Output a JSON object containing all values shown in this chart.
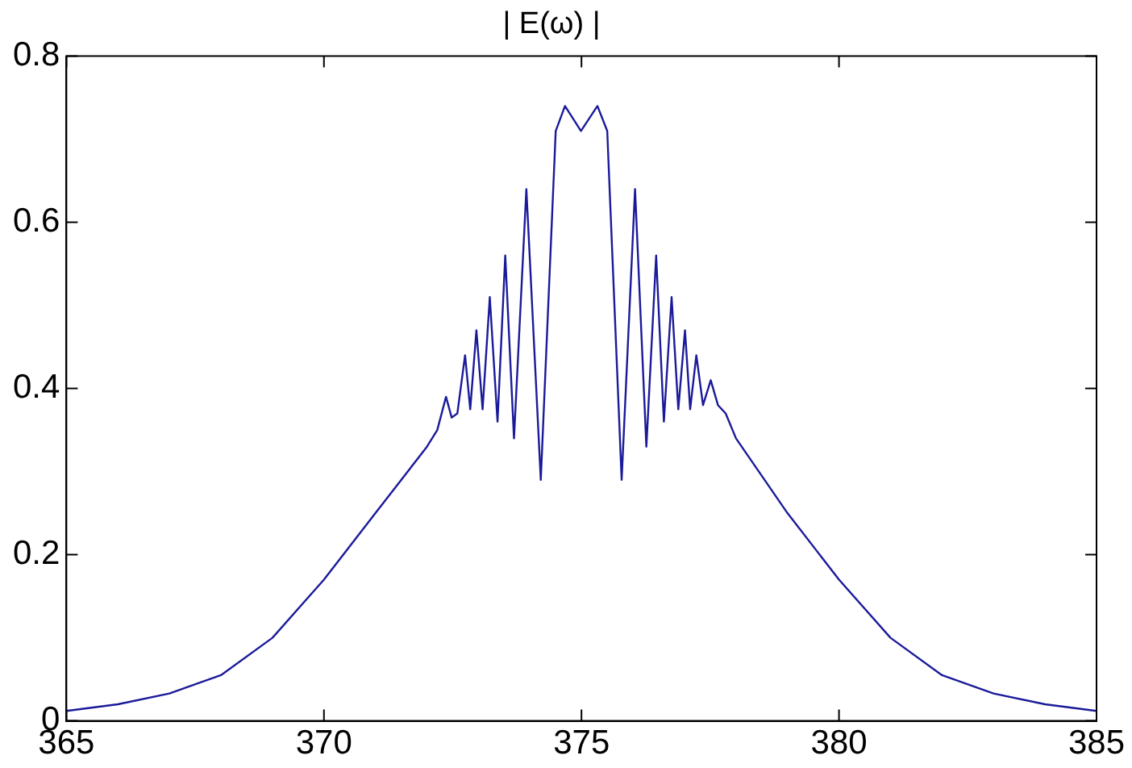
{
  "chart_data": {
    "type": "line",
    "title": "| E(ω) |",
    "xlim": [
      365,
      385
    ],
    "xticks": [
      365,
      370,
      375,
      380,
      385
    ],
    "ylim": [
      0,
      0.8
    ],
    "yticks": [
      0,
      0.2,
      0.4,
      0.6,
      0.8
    ],
    "grid": false,
    "legend": false,
    "marker": "none",
    "line_style": "solid",
    "series": [
      {
        "color": "#1a1a9a",
        "x": [
          365,
          366,
          367,
          368,
          369,
          370,
          371,
          372,
          372.2,
          372.37,
          372.48,
          372.59,
          372.74,
          372.84,
          372.96,
          373.08,
          373.22,
          373.37,
          373.52,
          373.69,
          373.93,
          374.21,
          374.5,
          374.68,
          374.99,
          375.31,
          375.5,
          375.78,
          376.04,
          376.26,
          376.45,
          376.6,
          376.75,
          376.88,
          377.01,
          377.11,
          377.23,
          377.36,
          377.51,
          377.65,
          377.8,
          378,
          379,
          380,
          381,
          382,
          383,
          384,
          385
        ],
        "values": [
          0.012,
          0.02,
          0.033,
          0.055,
          0.1,
          0.17,
          0.25,
          0.33,
          0.35,
          0.39,
          0.365,
          0.37,
          0.44,
          0.375,
          0.47,
          0.375,
          0.51,
          0.36,
          0.56,
          0.34,
          0.64,
          0.29,
          0.71,
          0.74,
          0.71,
          0.74,
          0.71,
          0.29,
          0.64,
          0.33,
          0.56,
          0.36,
          0.51,
          0.375,
          0.47,
          0.375,
          0.44,
          0.38,
          0.41,
          0.38,
          0.37,
          0.34,
          0.25,
          0.17,
          0.1,
          0.055,
          0.033,
          0.02,
          0.012
        ]
      }
    ]
  }
}
